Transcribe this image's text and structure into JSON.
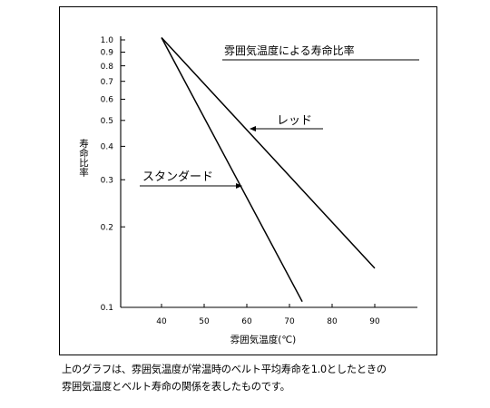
{
  "chart_data": {
    "type": "line",
    "title": "雰囲気温度による寿命比率",
    "xlabel": "雰囲気温度(℃)",
    "ylabel": "寿命比率",
    "x_ticks": [
      "40",
      "50",
      "60",
      "70",
      "80",
      "90"
    ],
    "y_ticks": [
      {
        "value": 1.0,
        "label": "1.0"
      },
      {
        "value": 0.9,
        "label": "0.9"
      },
      {
        "value": 0.8,
        "label": "0.8"
      },
      {
        "value": 0.7,
        "label": "0.7"
      },
      {
        "value": 0.6,
        "label": "0.6"
      },
      {
        "value": 0.5,
        "label": "0.5"
      },
      {
        "value": 0.4,
        "label": "0.4"
      },
      {
        "value": 0.3,
        "label": "0.3"
      },
      {
        "value": 0.2,
        "label": "0.2"
      },
      {
        "value": 0.1,
        "label": "0.1"
      }
    ],
    "y_scale": "log",
    "xlim": [
      30,
      97
    ],
    "ylim": [
      0.1,
      1.0
    ],
    "series": [
      {
        "name": "スタンダード",
        "points": [
          [
            40,
            1.02
          ],
          [
            73,
            0.105
          ]
        ]
      },
      {
        "name": "レッド",
        "points": [
          [
            40,
            1.02
          ],
          [
            90,
            0.14
          ]
        ]
      }
    ]
  },
  "caption": [
    "上のグラフは、雰囲気温度が常温時のベルト平均寿命を1.0としたときの",
    "雰囲気温度とベルト寿命の関係を表したものです。"
  ]
}
